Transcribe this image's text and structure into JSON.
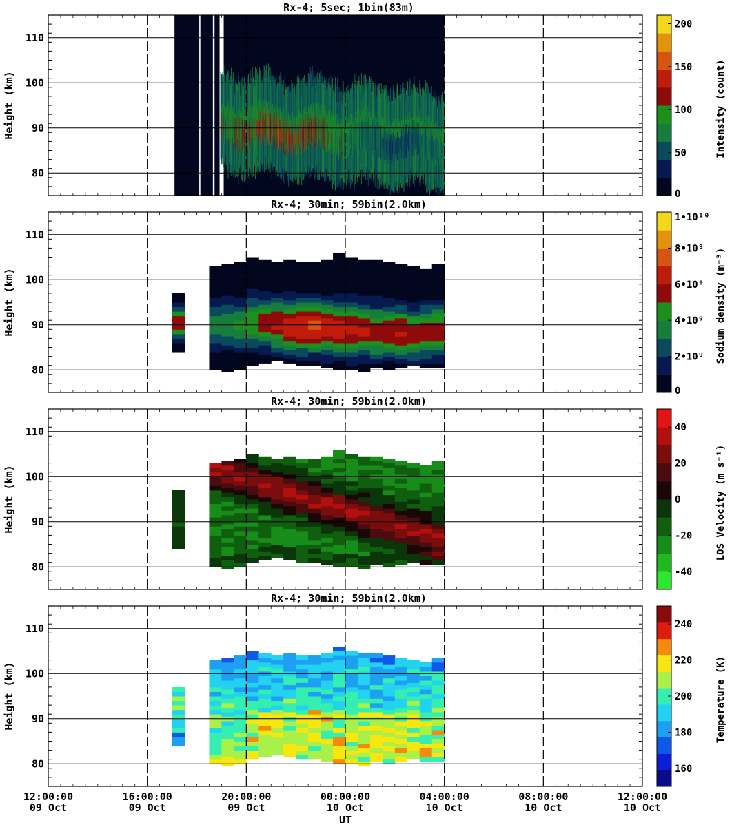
{
  "figure": {
    "xlabel": "UT",
    "x_ticks": [
      {
        "time": "12:00:00",
        "date": "09 Oct"
      },
      {
        "time": "16:00:00",
        "date": "09 Oct"
      },
      {
        "time": "20:00:00",
        "date": "09 Oct"
      },
      {
        "time": "00:00:00",
        "date": "10 Oct"
      },
      {
        "time": "04:00:00",
        "date": "10 Oct"
      },
      {
        "time": "08:00:00",
        "date": "10 Oct"
      },
      {
        "time": "12:00:00",
        "date": "10 Oct"
      }
    ]
  },
  "chart_data": [
    {
      "type": "heatmap",
      "title": "Rx-4;  5sec; 1bin(83m)",
      "ylabel": "Height (km)",
      "xlabel": "UT",
      "xlim_hours_ut": [
        12,
        36
      ],
      "ylim": [
        75,
        115
      ],
      "y_ticks": [
        80,
        90,
        100,
        110
      ],
      "cbar_label": "Intensity (count)",
      "cbar_ticks": [
        "0",
        "50",
        "100",
        "150",
        "200"
      ],
      "cbar_range": [
        0,
        210
      ],
      "colors": [
        "#02071f",
        "#061a4f",
        "#0b4a5c",
        "#177d3c",
        "#1d8f1d",
        "#8f0a0a",
        "#c01c0c",
        "#d65511",
        "#e3920e",
        "#f2d71b"
      ],
      "data_x_range_hours": [
        17.1,
        28.0
      ],
      "layer_center_km": [
        90,
        86
      ],
      "peak_intensity": 150
    },
    {
      "type": "heatmap",
      "title": "Rx-4; 30min; 59bin(2.0km)",
      "ylabel": "Height (km)",
      "xlabel": "UT",
      "xlim_hours_ut": [
        12,
        36
      ],
      "ylim": [
        75,
        115
      ],
      "y_ticks": [
        80,
        90,
        100,
        110
      ],
      "cbar_label": "Sodium density (m⁻³)",
      "cbar_ticks": [
        "0",
        "2•10⁹",
        "4•10⁹",
        "6•10⁹",
        "8•10⁹",
        "1•10¹⁰"
      ],
      "cbar_range": [
        0,
        10
      ],
      "colors": [
        "#02071f",
        "#061a4f",
        "#0b4a5c",
        "#177d3c",
        "#1d8f1d",
        "#8f0a0a",
        "#c01c0c",
        "#d65511",
        "#e3920e",
        "#f2d71b"
      ],
      "columns": [
        {
          "t": 17.25,
          "bottom": 84,
          "top": 97,
          "peak": 5.5,
          "center": 90.5
        },
        {
          "t": 18.75,
          "bottom": 80,
          "top": 102.5,
          "peak": 3.6,
          "center": 90
        },
        {
          "t": 19.25,
          "bottom": 79.5,
          "top": 103,
          "peak": 3.9,
          "center": 90
        },
        {
          "t": 19.75,
          "bottom": 80,
          "top": 104,
          "peak": 4.2,
          "center": 90
        },
        {
          "t": 20.25,
          "bottom": 81,
          "top": 104.5,
          "peak": 5.0,
          "center": 90.5
        },
        {
          "t": 20.75,
          "bottom": 81.5,
          "top": 104,
          "peak": 5.6,
          "center": 90.5
        },
        {
          "t": 21.25,
          "bottom": 82,
          "top": 104,
          "peak": 6.2,
          "center": 90
        },
        {
          "t": 21.75,
          "bottom": 81.5,
          "top": 104.5,
          "peak": 6.8,
          "center": 89.5
        },
        {
          "t": 22.25,
          "bottom": 81,
          "top": 104,
          "peak": 7.0,
          "center": 89.5
        },
        {
          "t": 22.75,
          "bottom": 81,
          "top": 104,
          "peak": 7.2,
          "center": 89.5
        },
        {
          "t": 23.25,
          "bottom": 80.5,
          "top": 104.5,
          "peak": 7.0,
          "center": 89.5
        },
        {
          "t": 23.75,
          "bottom": 80,
          "top": 105.5,
          "peak": 6.6,
          "center": 89
        },
        {
          "t": 24.25,
          "bottom": 80,
          "top": 105,
          "peak": 6.4,
          "center": 89
        },
        {
          "t": 24.75,
          "bottom": 79.5,
          "top": 104.5,
          "peak": 6.2,
          "center": 89
        },
        {
          "t": 25.25,
          "bottom": 80.5,
          "top": 104,
          "peak": 6.0,
          "center": 88.5
        },
        {
          "t": 25.75,
          "bottom": 80,
          "top": 104,
          "peak": 6.0,
          "center": 88.5
        },
        {
          "t": 26.25,
          "bottom": 80.5,
          "top": 103.5,
          "peak": 6.2,
          "center": 88.5
        },
        {
          "t": 26.75,
          "bottom": 81,
          "top": 103,
          "peak": 6.0,
          "center": 88
        },
        {
          "t": 27.25,
          "bottom": 80.5,
          "top": 102,
          "peak": 5.8,
          "center": 88.5
        },
        {
          "t": 27.75,
          "bottom": 80.5,
          "top": 103,
          "peak": 5.8,
          "center": 89
        }
      ]
    },
    {
      "type": "heatmap",
      "title": "Rx-4; 30min; 59bin(2.0km)",
      "ylabel": "Height (km)",
      "xlabel": "UT",
      "xlim_hours_ut": [
        12,
        36
      ],
      "ylim": [
        75,
        115
      ],
      "y_ticks": [
        80,
        90,
        100,
        110
      ],
      "cbar_label": "LOS Velocity (m s⁻¹)",
      "cbar_ticks": [
        "-40",
        "-20",
        "0",
        "20",
        "40"
      ],
      "cbar_range": [
        -50,
        50
      ],
      "colors": [
        "#2ee62e",
        "#22b822",
        "#188c18",
        "#0f5f0f",
        "#0a360a",
        "#1a0707",
        "#4a0c0c",
        "#7c0d0d",
        "#b30f0f",
        "#e51414"
      ],
      "columns": [
        {
          "t": 17.25,
          "bottom": 84,
          "top": 97,
          "v": -10
        },
        {
          "t": 18.75,
          "bottom": 80,
          "top": 102.5
        },
        {
          "t": 19.25,
          "bottom": 79.5,
          "top": 103
        },
        {
          "t": 19.75,
          "bottom": 80,
          "top": 104
        },
        {
          "t": 20.25,
          "bottom": 81,
          "top": 104.5
        },
        {
          "t": 20.75,
          "bottom": 81.5,
          "top": 104
        },
        {
          "t": 21.25,
          "bottom": 82,
          "top": 104
        },
        {
          "t": 21.75,
          "bottom": 81.5,
          "top": 104.5
        },
        {
          "t": 22.25,
          "bottom": 81,
          "top": 104
        },
        {
          "t": 22.75,
          "bottom": 81,
          "top": 104
        },
        {
          "t": 23.25,
          "bottom": 80.5,
          "top": 104.5
        },
        {
          "t": 23.75,
          "bottom": 80,
          "top": 105.5
        },
        {
          "t": 24.25,
          "bottom": 80,
          "top": 105
        },
        {
          "t": 24.75,
          "bottom": 79.5,
          "top": 104.5
        },
        {
          "t": 25.25,
          "bottom": 80.5,
          "top": 104
        },
        {
          "t": 25.75,
          "bottom": 80,
          "top": 104
        },
        {
          "t": 26.25,
          "bottom": 80.5,
          "top": 103.5
        },
        {
          "t": 26.75,
          "bottom": 81,
          "top": 103
        },
        {
          "t": 27.25,
          "bottom": 80.5,
          "top": 102
        },
        {
          "t": 27.75,
          "bottom": 80.5,
          "top": 103
        }
      ],
      "positive_band_center": {
        "start_hour": 19.0,
        "start_km": 101,
        "end_hour": 28.0,
        "end_km": 86,
        "peak": 45
      }
    },
    {
      "type": "heatmap",
      "title": "Rx-4; 30min; 59bin(2.0km)",
      "ylabel": "Height (km)",
      "xlabel": "UT",
      "xlim_hours_ut": [
        12,
        36
      ],
      "ylim": [
        75,
        115
      ],
      "y_ticks": [
        80,
        90,
        100,
        110
      ],
      "cbar_label": "Temperature (K)",
      "cbar_ticks": [
        "160",
        "180",
        "200",
        "220",
        "240"
      ],
      "cbar_range": [
        150,
        250
      ],
      "colors": [
        "#0a0a8c",
        "#0b1fd6",
        "#1058e8",
        "#1ea0f2",
        "#22d2f0",
        "#34efb0",
        "#a9f048",
        "#f7e70e",
        "#f58a0c",
        "#e01b0b",
        "#8c0a0a"
      ],
      "columns": [
        {
          "t": 17.25,
          "bottom": 84,
          "top": 97
        },
        {
          "t": 18.75,
          "bottom": 80,
          "top": 102.5
        },
        {
          "t": 19.25,
          "bottom": 79.5,
          "top": 103
        },
        {
          "t": 19.75,
          "bottom": 80,
          "top": 104
        },
        {
          "t": 20.25,
          "bottom": 81,
          "top": 104.5
        },
        {
          "t": 20.75,
          "bottom": 81.5,
          "top": 104
        },
        {
          "t": 21.25,
          "bottom": 82,
          "top": 104
        },
        {
          "t": 21.75,
          "bottom": 81.5,
          "top": 104.5
        },
        {
          "t": 22.25,
          "bottom": 81,
          "top": 104
        },
        {
          "t": 22.75,
          "bottom": 81,
          "top": 104
        },
        {
          "t": 23.25,
          "bottom": 80.5,
          "top": 104.5
        },
        {
          "t": 23.75,
          "bottom": 80,
          "top": 105.5
        },
        {
          "t": 24.25,
          "bottom": 80,
          "top": 105
        },
        {
          "t": 24.75,
          "bottom": 79.5,
          "top": 104.5
        },
        {
          "t": 25.25,
          "bottom": 80.5,
          "top": 104
        },
        {
          "t": 25.75,
          "bottom": 80,
          "top": 104
        },
        {
          "t": 26.25,
          "bottom": 80.5,
          "top": 103.5
        },
        {
          "t": 26.75,
          "bottom": 81,
          "top": 103
        },
        {
          "t": 27.25,
          "bottom": 80.5,
          "top": 102
        },
        {
          "t": 27.75,
          "bottom": 80.5,
          "top": 103
        }
      ]
    }
  ]
}
